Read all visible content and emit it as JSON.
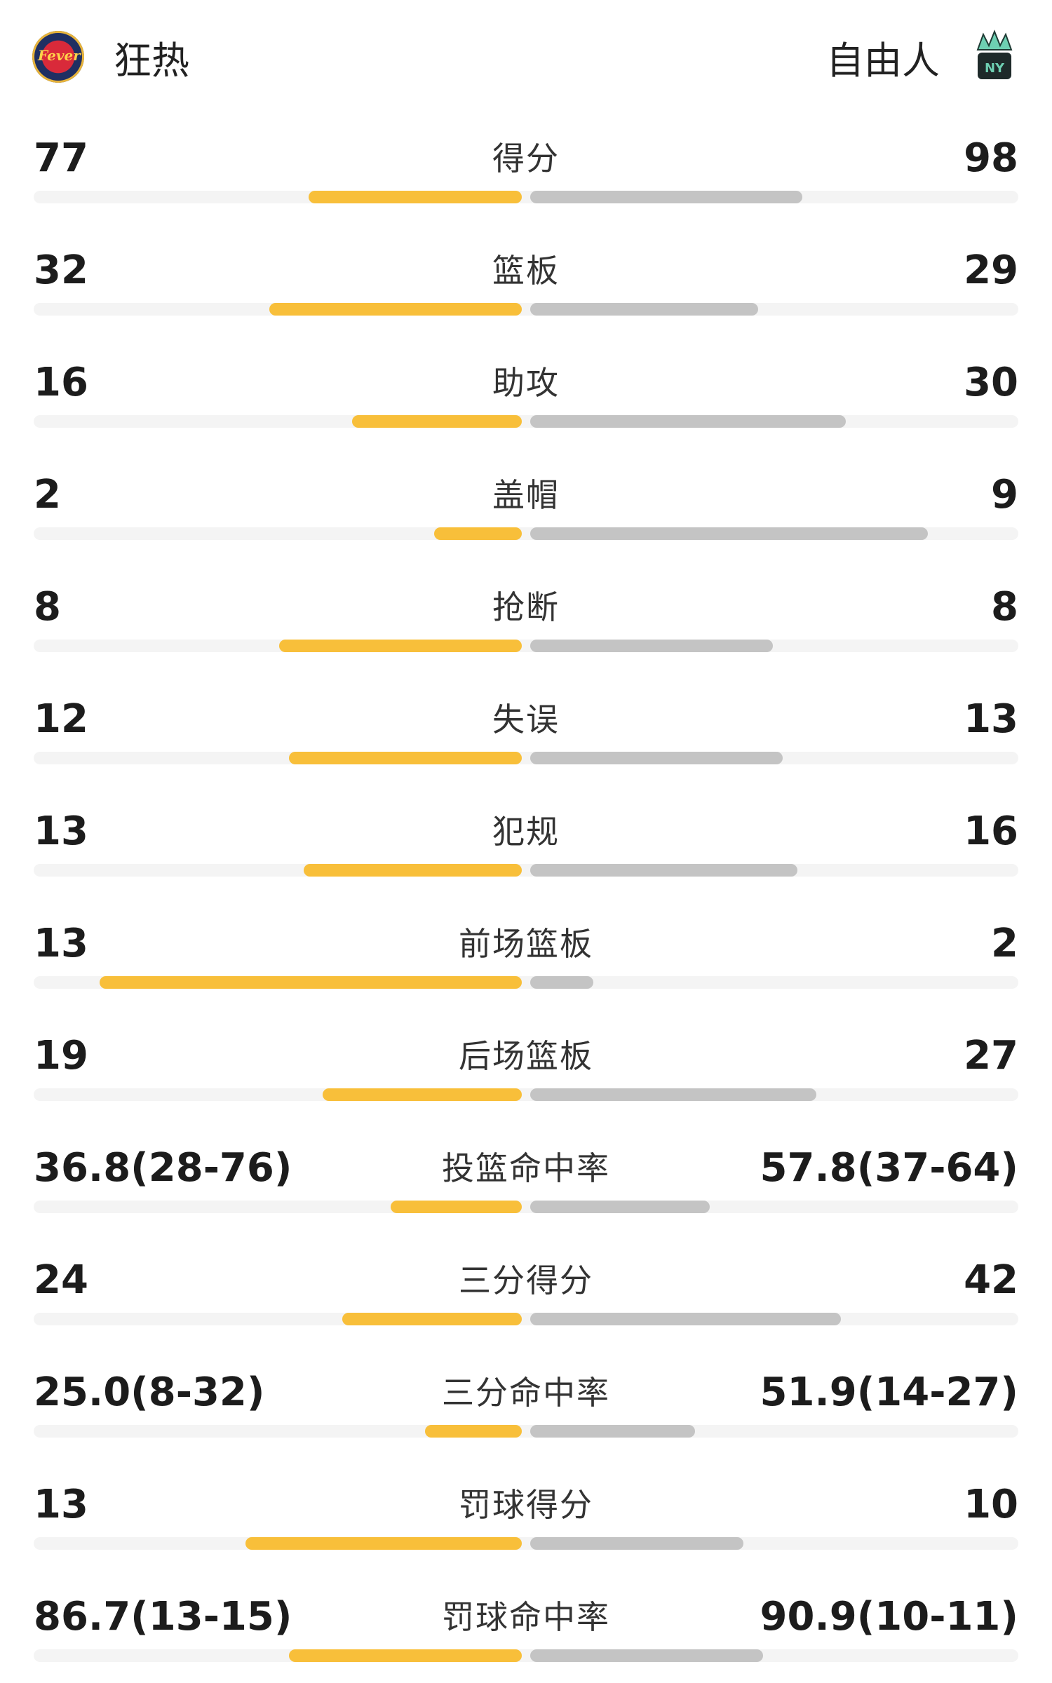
{
  "teams": {
    "left": {
      "name": "狂热",
      "logo_icon": "fever-logo-icon",
      "logo_text": "Fever"
    },
    "right": {
      "name": "自由人",
      "logo_icon": "liberty-logo-icon",
      "logo_text": "NY"
    }
  },
  "colors": {
    "left_bar": "#f8bf3a",
    "right_bar": "#c4c4c4",
    "track": "#f4f4f4"
  },
  "stats": [
    {
      "label": "得分",
      "left": "77",
      "right": "98",
      "left_frac": 0.44,
      "right_frac": 0.56
    },
    {
      "label": "篮板",
      "left": "32",
      "right": "29",
      "left_frac": 0.52,
      "right_frac": 0.47
    },
    {
      "label": "助攻",
      "left": "16",
      "right": "30",
      "left_frac": 0.35,
      "right_frac": 0.65
    },
    {
      "label": "盖帽",
      "left": "2",
      "right": "9",
      "left_frac": 0.18,
      "right_frac": 0.82
    },
    {
      "label": "抢断",
      "left": "8",
      "right": "8",
      "left_frac": 0.5,
      "right_frac": 0.5
    },
    {
      "label": "失误",
      "left": "12",
      "right": "13",
      "left_frac": 0.48,
      "right_frac": 0.52
    },
    {
      "label": "犯规",
      "left": "13",
      "right": "16",
      "left_frac": 0.45,
      "right_frac": 0.55
    },
    {
      "label": "前场篮板",
      "left": "13",
      "right": "2",
      "left_frac": 0.87,
      "right_frac": 0.13
    },
    {
      "label": "后场篮板",
      "left": "19",
      "right": "27",
      "left_frac": 0.41,
      "right_frac": 0.59
    },
    {
      "label": "投篮命中率",
      "left": "36.8(28-76)",
      "right": "57.8(37-64)",
      "left_frac": 0.27,
      "right_frac": 0.37
    },
    {
      "label": "三分得分",
      "left": "24",
      "right": "42",
      "left_frac": 0.37,
      "right_frac": 0.64
    },
    {
      "label": "三分命中率",
      "left": "25.0(8-32)",
      "right": "51.9(14-27)",
      "left_frac": 0.2,
      "right_frac": 0.34
    },
    {
      "label": "罚球得分",
      "left": "13",
      "right": "10",
      "left_frac": 0.57,
      "right_frac": 0.44
    },
    {
      "label": "罚球命中率",
      "left": "86.7(13-15)",
      "right": "90.9(10-11)",
      "left_frac": 0.48,
      "right_frac": 0.48
    }
  ]
}
